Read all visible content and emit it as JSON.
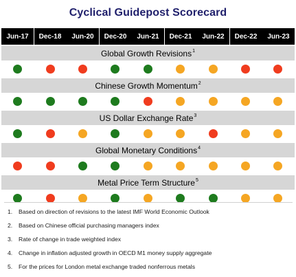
{
  "title": "Cyclical Guidepost Scorecard",
  "colors": {
    "green": "#1e7b1e",
    "orange": "#f5a623",
    "red": "#f03c1e",
    "header_bg": "#000000",
    "label_bg": "#d6d6d6",
    "title": "#1f1f6b"
  },
  "chart_data": {
    "type": "table",
    "title": "Cyclical Guidepost Scorecard",
    "columns": [
      "Jun-17",
      "Dec-18",
      "Jun-20",
      "Dec-20",
      "Jun-21",
      "Dec-21",
      "Jun-22",
      "Dec-22",
      "Jun-23"
    ],
    "rows": [
      {
        "label": "Global Growth Revisions",
        "note": "1",
        "values": [
          "green",
          "red",
          "red",
          "green",
          "green",
          "orange",
          "orange",
          "red",
          "red"
        ]
      },
      {
        "label": "Chinese Growth Momentum",
        "note": "2",
        "values": [
          "green",
          "green",
          "green",
          "green",
          "red",
          "orange",
          "orange",
          "orange",
          "orange"
        ]
      },
      {
        "label": "US Dollar Exchange Rate",
        "note": "3",
        "values": [
          "green",
          "red",
          "orange",
          "green",
          "orange",
          "orange",
          "red",
          "orange",
          "orange"
        ]
      },
      {
        "label": "Global Monetary Conditions",
        "note": "4",
        "values": [
          "red",
          "red",
          "green",
          "green",
          "orange",
          "orange",
          "orange",
          "orange",
          "orange"
        ]
      },
      {
        "label": "Metal Price Term Structure",
        "note": "5",
        "values": [
          "green",
          "red",
          "orange",
          "green",
          "orange",
          "green",
          "green",
          "orange",
          "orange"
        ]
      }
    ]
  },
  "footnotes": [
    {
      "num": "1.",
      "text": "Based on direction of revisions to the latest IMF World Economic Outlook"
    },
    {
      "num": "2.",
      "text": "Based on Chinese official purchasing managers index"
    },
    {
      "num": "3.",
      "text": "Rate of change in trade weighted index"
    },
    {
      "num": "4.",
      "text": "Change in inflation adjusted growth in OECD M1 money supply aggregate"
    },
    {
      "num": "5.",
      "text": "For the prices for London metal exchange traded nonferrous metals"
    }
  ]
}
